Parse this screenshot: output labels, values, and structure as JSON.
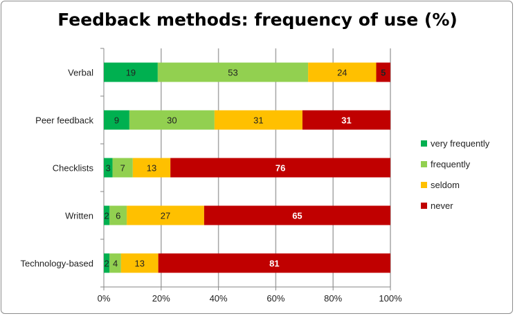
{
  "chart_data": {
    "type": "bar",
    "orientation": "horizontal",
    "stacked": "percent",
    "title": "Feedback methods: frequency of use (%)",
    "categories": [
      "Verbal",
      "Peer feedback",
      "Checklists",
      "Written",
      "Technology-based"
    ],
    "series": [
      {
        "name": "very frequently",
        "color": "#00B050",
        "values": [
          19,
          9,
          3,
          2,
          2
        ]
      },
      {
        "name": "frequently",
        "color": "#92D050",
        "values": [
          53,
          30,
          7,
          6,
          4
        ]
      },
      {
        "name": "seldom",
        "color": "#FFC000",
        "values": [
          24,
          31,
          13,
          27,
          13
        ]
      },
      {
        "name": "never",
        "color": "#C00000",
        "values": [
          5,
          31,
          76,
          65,
          81
        ]
      }
    ],
    "xticks": [
      "0%",
      "20%",
      "40%",
      "60%",
      "80%",
      "100%"
    ],
    "xlim": [
      0,
      100
    ],
    "grid": true,
    "legend": "right"
  }
}
